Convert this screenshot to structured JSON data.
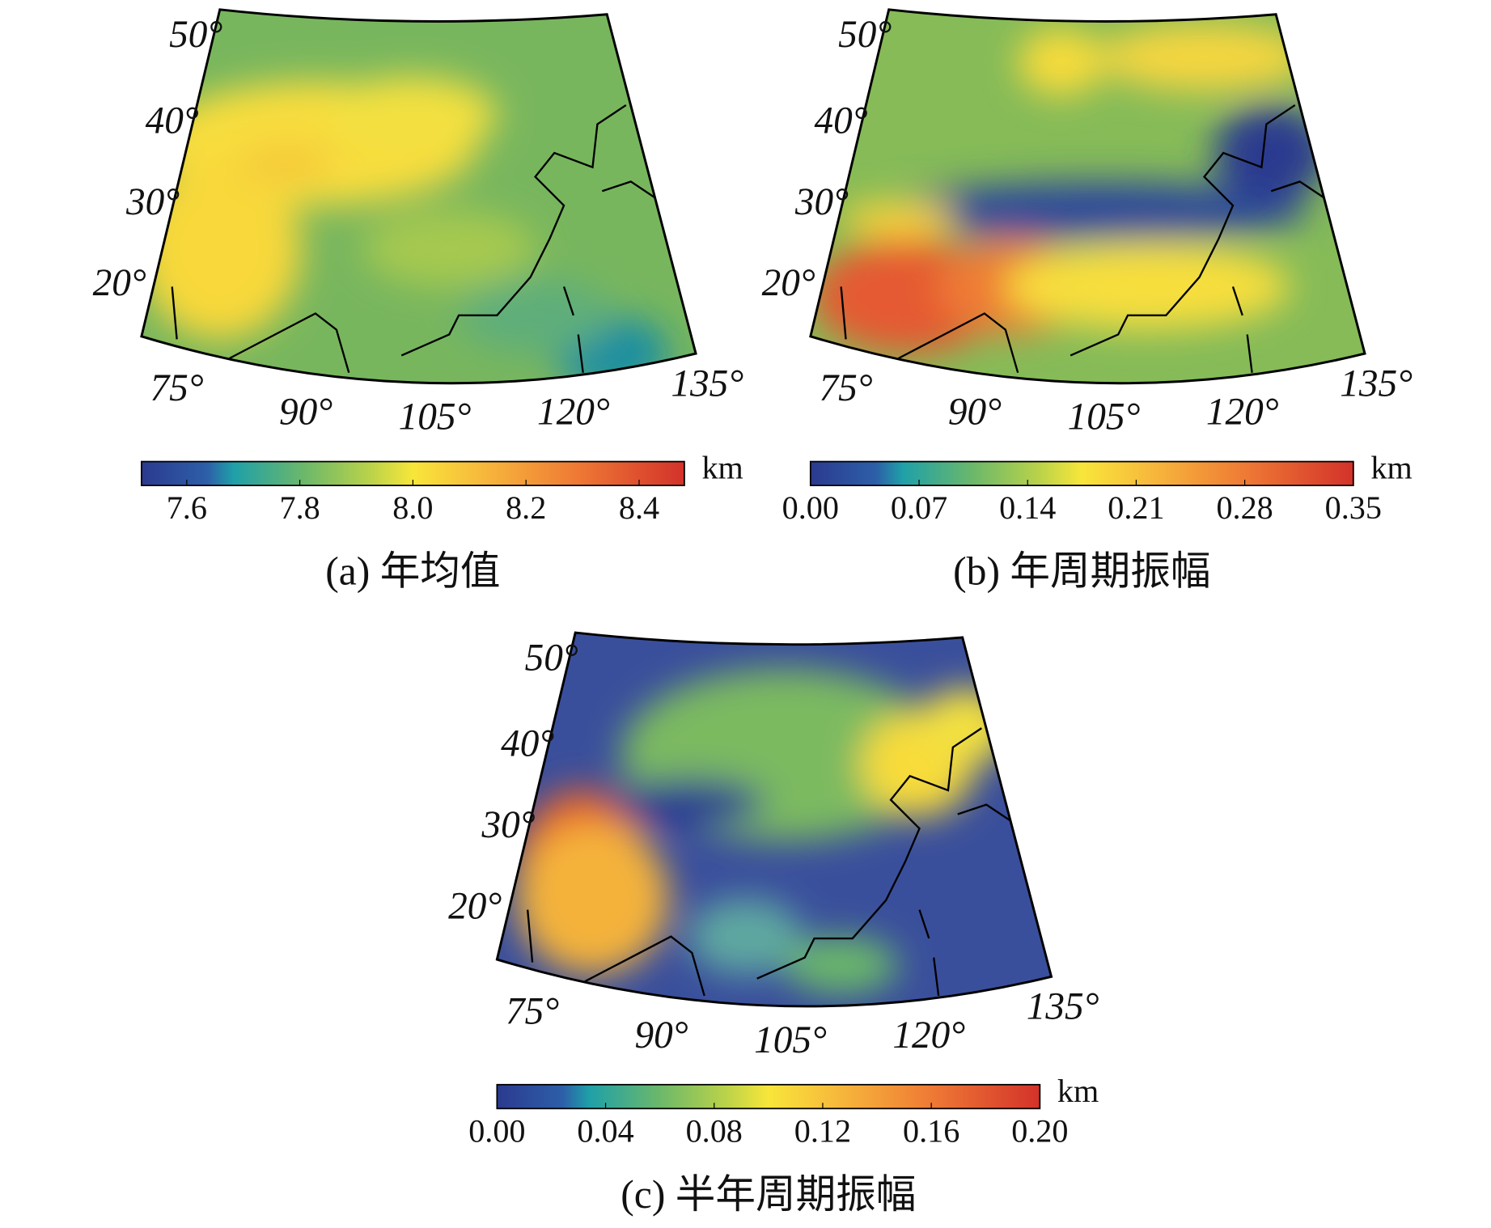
{
  "panels": [
    {
      "caption": "(a) 年均值",
      "unit": "km",
      "colorbar_range": [
        7.52,
        8.48
      ],
      "colorbar_ticks": [
        7.6,
        7.8,
        {
          "value": 8,
          "label": "8.0"
        },
        8.2,
        8.4
      ],
      "lat_labels": [
        "50°",
        "40°",
        "30°",
        "20°"
      ],
      "lon_labels": [
        "75°",
        "90°",
        "105°",
        "120°",
        "135°"
      ]
    },
    {
      "caption": "(b) 年周期振幅",
      "unit": "km",
      "colorbar_range": [
        0,
        0.35
      ],
      "colorbar_ticks": [
        {
          "value": 0,
          "label": "0.00"
        },
        0.07,
        0.14,
        0.21,
        0.28,
        0.35
      ],
      "lat_labels": [
        "50°",
        "40°",
        "30°",
        "20°"
      ],
      "lon_labels": [
        "75°",
        "90°",
        "105°",
        "120°",
        "135°"
      ]
    },
    {
      "caption": "(c) 半年周期振幅",
      "unit": "km",
      "colorbar_range": [
        0,
        0.2
      ],
      "colorbar_ticks": [
        {
          "value": 0,
          "label": "0.00"
        },
        0.04,
        0.08,
        0.12,
        0.16,
        {
          "value": 0.2,
          "label": "0.20"
        }
      ],
      "lat_labels": [
        "50°",
        "40°",
        "30°",
        "20°"
      ],
      "lon_labels": [
        "75°",
        "90°",
        "105°",
        "120°",
        "135°"
      ]
    }
  ]
}
